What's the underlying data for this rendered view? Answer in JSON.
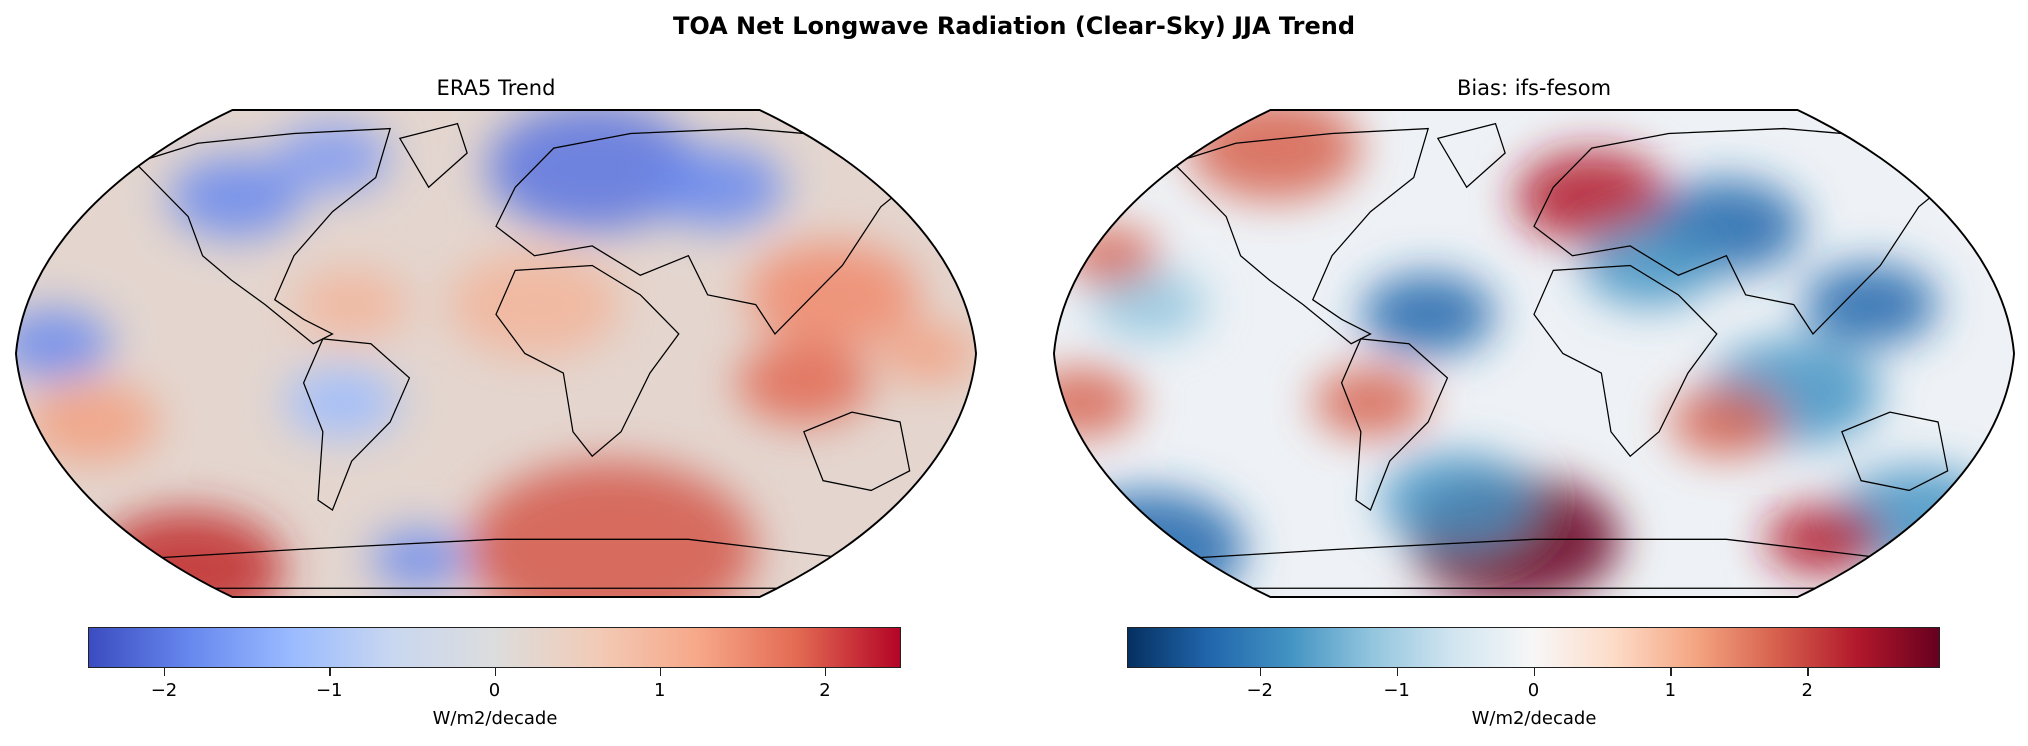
{
  "title": "TOA Net Longwave Radiation (Clear-Sky) JJA Trend",
  "chart_data": [
    {
      "type": "heatmap",
      "projection": "Robinson",
      "title": "ERA5 Trend",
      "colormap": "coolwarm",
      "colorbar": {
        "label": "W/m2/decade",
        "range": [
          -2.46,
          2.46
        ],
        "ticks": [
          -2,
          -1,
          0,
          1,
          2
        ],
        "tick_labels": [
          "−2",
          "−1",
          "0",
          "1",
          "2"
        ],
        "orientation": "horizontal",
        "colors": [
          "#3b4cc0",
          "#6788ee",
          "#9abbff",
          "#c9d7f0",
          "#dcdddd",
          "#f2cbb7",
          "#f7a889",
          "#e26952",
          "#b40426"
        ]
      }
    },
    {
      "type": "heatmap",
      "projection": "Robinson",
      "title": "Bias: ifs-fesom",
      "colormap": "RdBu_r",
      "colorbar": {
        "label": "W/m2/decade",
        "range": [
          -2.97,
          2.97
        ],
        "ticks": [
          -2,
          -1,
          0,
          1,
          2
        ],
        "tick_labels": [
          "−2",
          "−1",
          "0",
          "1",
          "2"
        ],
        "orientation": "horizontal",
        "colors": [
          "#053061",
          "#2166ac",
          "#4393c3",
          "#92c5de",
          "#d1e5f0",
          "#f7f7f7",
          "#fddbc7",
          "#f4a582",
          "#d6604d",
          "#b2182b",
          "#67001f"
        ]
      }
    }
  ]
}
